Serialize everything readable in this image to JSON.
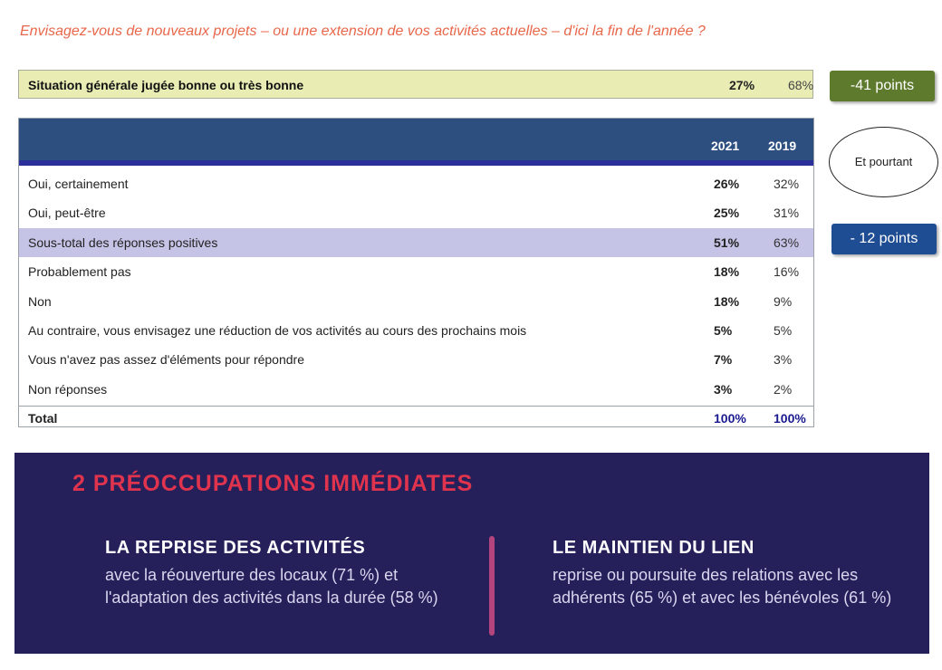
{
  "question": "Envisagez-vous de nouveaux projets – ou une extension de vos activités actuelles – d'ici la fin de l'année ?",
  "summary": {
    "label": "Situation générale jugée bonne ou très bonne",
    "v2021": "27%",
    "v2019": "68%"
  },
  "badges": {
    "green": "-41 points",
    "blue": "- 12 points"
  },
  "callout": "Et pourtant",
  "chart_data": {
    "type": "table",
    "columns": [
      "2021",
      "2019"
    ],
    "rows": [
      {
        "label": "Oui, certainement",
        "v2021": "26%",
        "v2019": "32%"
      },
      {
        "label": "Oui, peut-être",
        "v2021": "25%",
        "v2019": "31%"
      },
      {
        "label": "Sous-total des réponses positives",
        "v2021": "51%",
        "v2019": "63%"
      },
      {
        "label": "Probablement pas",
        "v2021": "18%",
        "v2019": "16%"
      },
      {
        "label": "Non",
        "v2021": "18%",
        "v2019": "9%"
      },
      {
        "label": "Au contraire, vous envisagez une réduction de vos activités au cours des prochains mois",
        "v2021": "5%",
        "v2019": "5%"
      },
      {
        "label": "Vous n'avez pas assez d'éléments pour répondre",
        "v2021": "7%",
        "v2019": "3%"
      },
      {
        "label": "Non réponses",
        "v2021": "3%",
        "v2019": "2%"
      }
    ],
    "total": {
      "label": "Total",
      "v2021": "100%",
      "v2019": "100%"
    }
  },
  "panel": {
    "title": "2 PRÉOCCUPATIONS IMMÉDIATES",
    "col1": {
      "heading": "LA REPRISE DES ACTIVITÉS",
      "text": "avec la réouverture des locaux (71 %) et l'adaptation des activités dans la durée (58 %)"
    },
    "col2": {
      "heading": "LE MAINTIEN DU LIEN",
      "text": "reprise ou poursuite des relations avec les adhérents (65 %) et avec les bénévoles (61 %)"
    }
  }
}
